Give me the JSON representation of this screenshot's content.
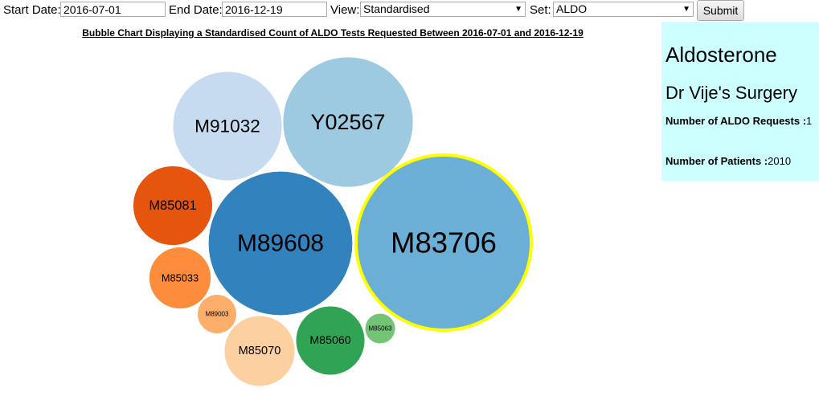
{
  "toolbar": {
    "start_label": "Start Date:",
    "start_value": "2016-07-01",
    "end_label": "End Date:",
    "end_value": "2016-12-19",
    "view_label": "View:",
    "view_value": "Standardised",
    "set_label": "Set:",
    "set_value": "ALDO",
    "submit_label": "Submit"
  },
  "chart_data": {
    "type": "bubble",
    "title": "Bubble Chart Displaying a Standardised Count of ALDO Tests Requested Between 2016-07-01 and 2016-12-19",
    "highlighted": "M83706",
    "bubbles": [
      {
        "label": "M91032",
        "relative_size": 0.62,
        "color": "#c6dbef"
      },
      {
        "label": "Y02567",
        "relative_size": 0.74,
        "color": "#9ecae1"
      },
      {
        "label": "M85081",
        "relative_size": 0.45,
        "color": "#e6550d"
      },
      {
        "label": "M89608",
        "relative_size": 0.82,
        "color": "#3182bd"
      },
      {
        "label": "M83706",
        "relative_size": 1.0,
        "color": "#6baed6"
      },
      {
        "label": "M85033",
        "relative_size": 0.35,
        "color": "#fd8d3c"
      },
      {
        "label": "M89003",
        "relative_size": 0.22,
        "color": "#fdae6b"
      },
      {
        "label": "M85070",
        "relative_size": 0.4,
        "color": "#fdd0a2"
      },
      {
        "label": "M85060",
        "relative_size": 0.39,
        "color": "#31a354"
      },
      {
        "label": "M85063",
        "relative_size": 0.17,
        "color": "#74c476"
      }
    ]
  },
  "info": {
    "test_name": "Aldosterone",
    "practice_name": "Dr Vije's Surgery",
    "requests_label": "Number of ALDO Requests :",
    "requests_value": "1",
    "patients_label": "Number of Patients :",
    "patients_value": "2010"
  },
  "colors": {
    "info_bg": "#ccffff",
    "highlight_stroke": "#ffff00"
  }
}
